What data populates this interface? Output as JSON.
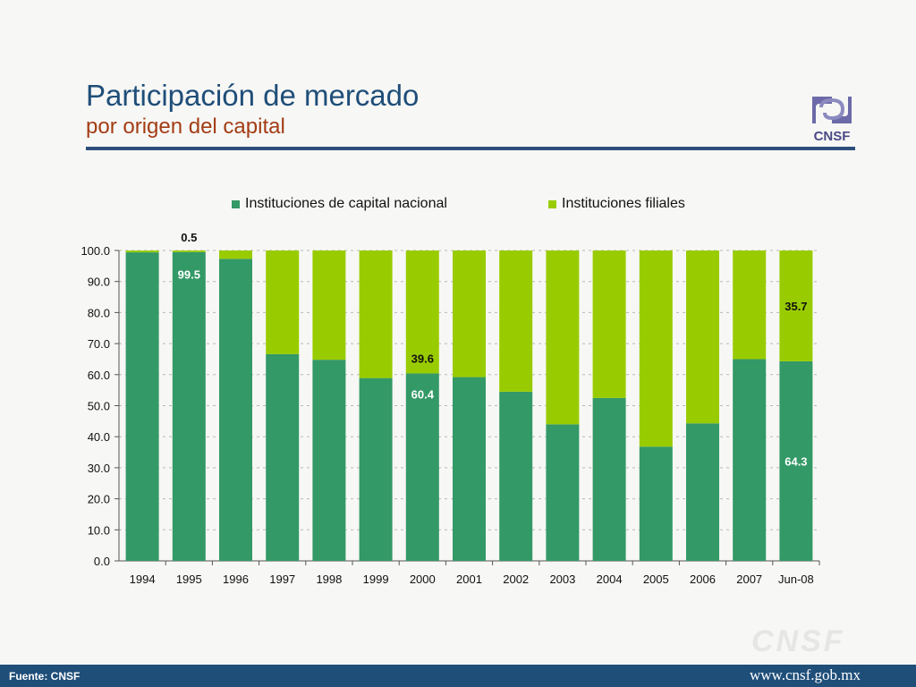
{
  "header": {
    "title": "Participación de mercado",
    "subtitle": "por origen del capital"
  },
  "logo": {
    "text": "CNSF"
  },
  "footer": {
    "source": "Fuente: CNSF",
    "url": "www.cnsf.gob.mx",
    "watermark": "CNSF"
  },
  "colors": {
    "nacional": "#339966",
    "filiales": "#99cc00",
    "title": "#1f4e79",
    "subtitle": "#a33d15"
  },
  "chart_data": {
    "type": "bar",
    "stacked": true,
    "title": "",
    "xlabel": "",
    "ylabel": "",
    "ylim": [
      0,
      100
    ],
    "yticks": [
      "0.0",
      "10.0",
      "20.0",
      "30.0",
      "40.0",
      "50.0",
      "60.0",
      "70.0",
      "80.0",
      "90.0",
      "100.0"
    ],
    "grid": true,
    "legend_position": "top",
    "categories": [
      "1994",
      "1995",
      "1996",
      "1997",
      "1998",
      "1999",
      "2000",
      "2001",
      "2002",
      "2003",
      "2004",
      "2005",
      "2006",
      "2007",
      "Jun-08"
    ],
    "series": [
      {
        "name": "Instituciones de capital nacional",
        "values": [
          99.4,
          99.5,
          97.3,
          66.6,
          64.8,
          58.9,
          60.4,
          59.2,
          54.5,
          44.0,
          52.5,
          36.8,
          44.3,
          65.0,
          64.3
        ]
      },
      {
        "name": "Instituciones filiales",
        "values": [
          0.6,
          0.5,
          2.7,
          33.4,
          35.2,
          41.1,
          39.6,
          40.8,
          45.5,
          56.0,
          47.5,
          63.2,
          55.7,
          35.0,
          35.7
        ]
      }
    ],
    "data_labels": [
      {
        "series": 0,
        "index": 1,
        "text": "99.5"
      },
      {
        "series": 1,
        "index": 1,
        "text": "0.5"
      },
      {
        "series": 0,
        "index": 6,
        "text": "60.4"
      },
      {
        "series": 1,
        "index": 6,
        "text": "39.6"
      },
      {
        "series": 0,
        "index": 14,
        "text": "64.3"
      },
      {
        "series": 1,
        "index": 14,
        "text": "35.7"
      }
    ]
  }
}
